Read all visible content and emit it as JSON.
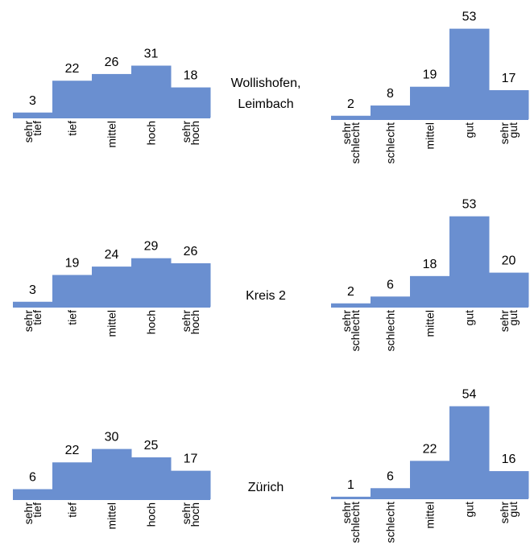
{
  "colors": {
    "bar": "#6a8fd0",
    "axis": "#6a8fd0",
    "text": "#000000"
  },
  "chart_data": [
    {
      "type": "bar",
      "region": "",
      "categories": [
        "sehr tief",
        "tief",
        "mittel",
        "hoch",
        "sehr hoch"
      ],
      "values": [
        3,
        22,
        26,
        31,
        18
      ],
      "ylim": [
        0,
        60
      ]
    },
    {
      "type": "bar",
      "region": "Wollishofen, Leimbach",
      "categories": [
        "sehr schlecht",
        "schlecht",
        "mittel",
        "gut",
        "sehr gut"
      ],
      "values": [
        2,
        8,
        19,
        53,
        17
      ],
      "ylim": [
        0,
        60
      ]
    },
    {
      "type": "bar",
      "region": "",
      "categories": [
        "sehr tief",
        "tief",
        "mittel",
        "hoch",
        "sehr hoch"
      ],
      "values": [
        3,
        19,
        24,
        29,
        26
      ],
      "ylim": [
        0,
        60
      ]
    },
    {
      "type": "bar",
      "region": "Kreis 2",
      "categories": [
        "sehr schlecht",
        "schlecht",
        "mittel",
        "gut",
        "sehr gut"
      ],
      "values": [
        2,
        6,
        18,
        53,
        20
      ],
      "ylim": [
        0,
        60
      ]
    },
    {
      "type": "bar",
      "region": "",
      "categories": [
        "sehr tief",
        "tief",
        "mittel",
        "hoch",
        "sehr hoch"
      ],
      "values": [
        6,
        22,
        30,
        25,
        17
      ],
      "ylim": [
        0,
        60
      ]
    },
    {
      "type": "bar",
      "region": "Zürich",
      "categories": [
        "sehr schlecht",
        "schlecht",
        "mittel",
        "gut",
        "sehr gut"
      ],
      "values": [
        1,
        6,
        22,
        54,
        16
      ],
      "ylim": [
        0,
        60
      ]
    }
  ]
}
